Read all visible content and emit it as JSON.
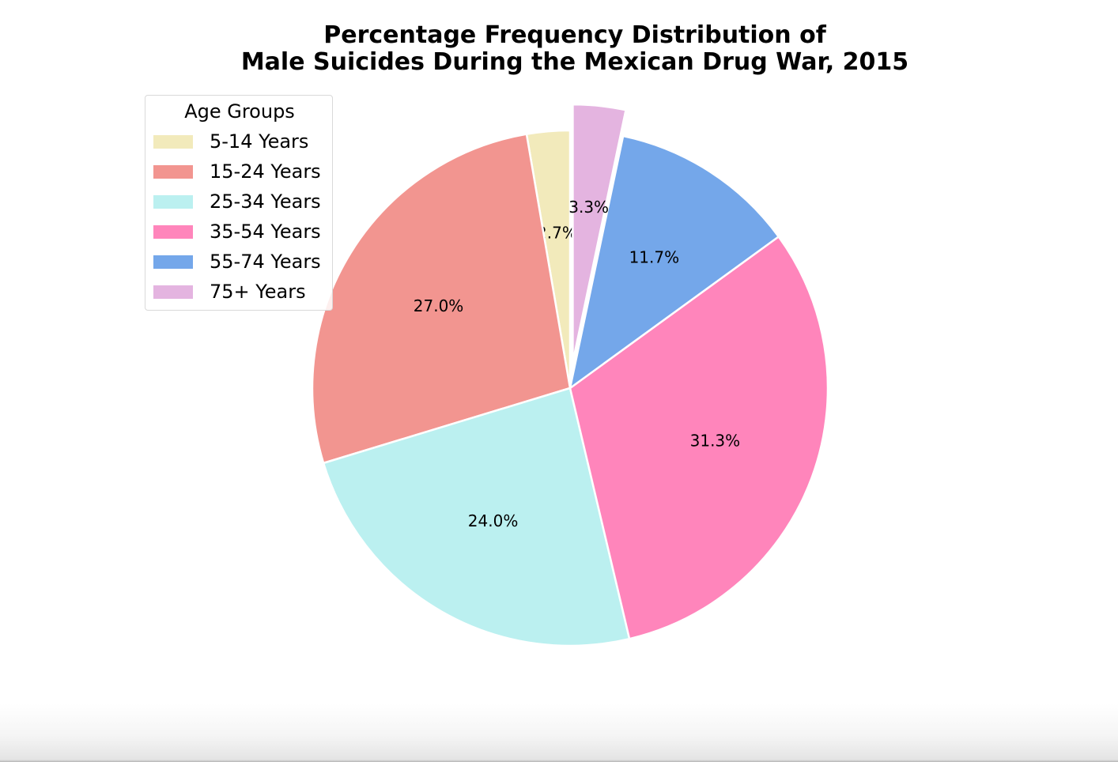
{
  "chart_data": {
    "type": "pie",
    "title": "Percentage Frequency Distribution of\nMale Suicides During the Mexican Drug War, 2015",
    "legend_title": "Age Groups",
    "legend_position": "upper-left",
    "categories": [
      "5-14 Years",
      "15-24 Years",
      "25-34 Years",
      "35-54 Years",
      "55-74 Years",
      "75+ Years"
    ],
    "values": [
      2.7,
      27.0,
      24.0,
      31.3,
      11.7,
      3.3
    ],
    "labels": [
      "2.7%",
      "27.0%",
      "24.0%",
      "31.3%",
      "11.7%",
      "3.3%"
    ],
    "colors": [
      "#f2eabb",
      "#f29590",
      "#bbf0f0",
      "#ff85bb",
      "#74a7ea",
      "#e4b4e0"
    ],
    "exploded": "75+ Years",
    "start_angle_deg": 90,
    "direction": "counterclockwise"
  }
}
